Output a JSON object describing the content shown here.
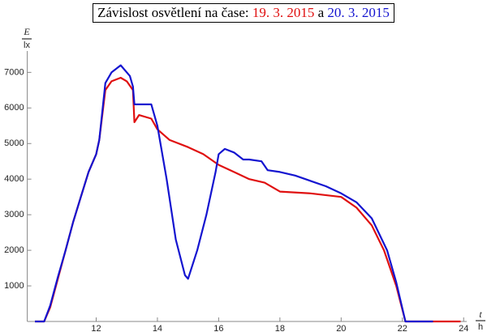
{
  "chart_data": {
    "type": "line",
    "title": {
      "text": "Závislost osvětlení na čase:",
      "connector": "a"
    },
    "y_label": {
      "quantity": "E",
      "unit": "lx"
    },
    "x_label": {
      "quantity": "t",
      "unit": "h"
    },
    "xlim": [
      9.75,
      24.1
    ],
    "xticks": [
      12,
      14,
      16,
      18,
      20,
      22,
      24
    ],
    "ylim": [
      0,
      7600
    ],
    "yticks": [
      1000,
      2000,
      3000,
      4000,
      5000,
      6000,
      7000
    ],
    "series": [
      {
        "name": "19. 3. 2015",
        "color": "#e01010",
        "x": [
          10.0,
          10.3,
          10.5,
          10.75,
          11.0,
          11.25,
          11.5,
          11.75,
          12.0,
          12.1,
          12.3,
          12.5,
          12.8,
          13.0,
          13.2,
          13.25,
          13.4,
          13.8,
          14.0,
          14.4,
          15.0,
          15.5,
          16.0,
          16.5,
          17.0,
          17.5,
          18.0,
          19.0,
          20.0,
          20.5,
          21.0,
          21.4,
          21.8,
          22.1,
          23.0,
          23.9
        ],
        "values": [
          0,
          0,
          400,
          1200,
          2000,
          2800,
          3500,
          4200,
          4700,
          5100,
          6500,
          6750,
          6850,
          6750,
          6500,
          5600,
          5800,
          5700,
          5400,
          5100,
          4900,
          4700,
          4400,
          4200,
          4000,
          3900,
          3650,
          3600,
          3500,
          3200,
          2700,
          2000,
          1000,
          0,
          0,
          0
        ]
      },
      {
        "name": "20. 3. 2015",
        "color": "#1414d0",
        "x": [
          10.0,
          10.3,
          10.5,
          10.75,
          11.0,
          11.25,
          11.5,
          11.75,
          12.0,
          12.1,
          12.3,
          12.5,
          12.8,
          13.1,
          13.2,
          13.25,
          13.8,
          14.0,
          14.3,
          14.6,
          14.9,
          15.0,
          15.3,
          15.6,
          15.9,
          16.0,
          16.2,
          16.5,
          16.8,
          17.0,
          17.4,
          17.6,
          18.0,
          18.5,
          19.0,
          19.5,
          20.0,
          20.5,
          21.0,
          21.5,
          21.8,
          22.1,
          23.0
        ],
        "values": [
          0,
          0,
          450,
          1250,
          2000,
          2800,
          3500,
          4200,
          4700,
          5100,
          6700,
          7000,
          7200,
          6900,
          6600,
          6100,
          6100,
          5500,
          4000,
          2300,
          1300,
          1200,
          2000,
          3000,
          4200,
          4700,
          4850,
          4750,
          4550,
          4550,
          4500,
          4250,
          4200,
          4100,
          3950,
          3800,
          3600,
          3350,
          2900,
          2000,
          1100,
          0,
          0
        ]
      }
    ]
  }
}
